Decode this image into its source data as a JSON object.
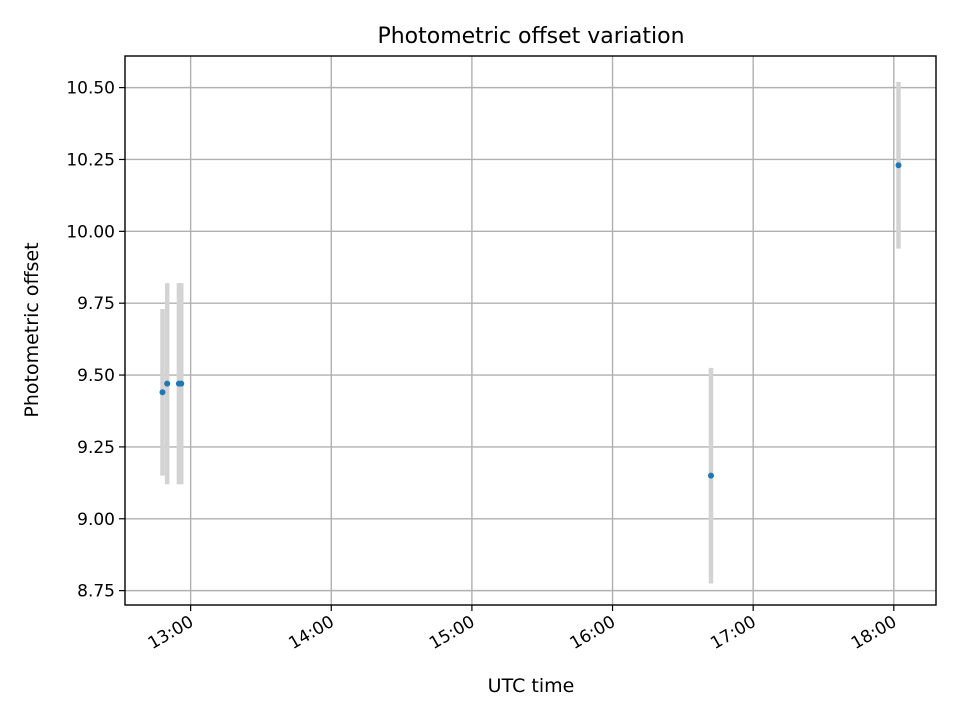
{
  "chart_data": {
    "type": "scatter",
    "title": "Photometric offset variation",
    "xlabel": "UTC time",
    "ylabel": "Photometric offset",
    "x_axis_type": "time",
    "xlim": [
      "12:32",
      "18:18"
    ],
    "ylim": [
      8.7,
      10.61
    ],
    "grid": true,
    "xticks": [
      "13:00",
      "14:00",
      "15:00",
      "16:00",
      "17:00",
      "18:00"
    ],
    "yticks": [
      "8.75",
      "9.00",
      "9.25",
      "9.50",
      "9.75",
      "10.00",
      "10.25",
      "10.50"
    ],
    "series": [
      {
        "points": [
          {
            "x": "12:48",
            "y": 9.44,
            "yerr": 0.29
          },
          {
            "x": "12:50",
            "y": 9.47,
            "yerr": 0.35
          },
          {
            "x": "12:55",
            "y": 9.47,
            "yerr": 0.35
          },
          {
            "x": "12:56",
            "y": 9.47,
            "yerr": 0.35
          },
          {
            "x": "16:42",
            "y": 9.15,
            "yerr": 0.375
          },
          {
            "x": "18:02",
            "y": 10.23,
            "yerr": 0.29
          }
        ]
      }
    ],
    "colors": {
      "marker": "#1f77b4",
      "errorbar": "#d3d3d3",
      "grid": "#b0b0b0"
    }
  }
}
